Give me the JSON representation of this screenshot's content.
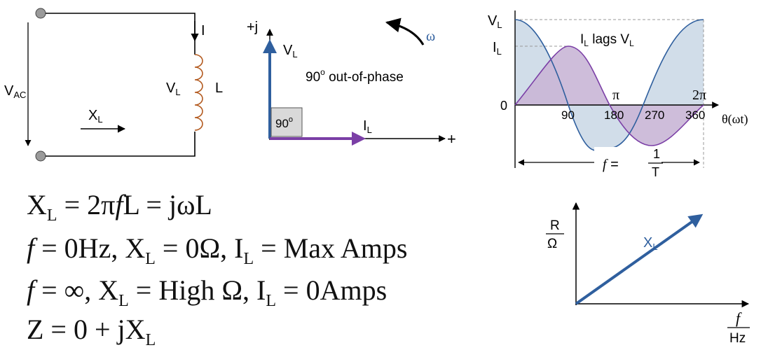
{
  "colors": {
    "blue": "#2f5f9e",
    "purple": "#7b3fa6",
    "peak": "#6b3f9a",
    "shade_blue": "#cfdbe8",
    "shade_purple": "#c9b6d6",
    "inductor": "#b35a1f",
    "omega": "#2f5f9e",
    "ink": "#000000"
  },
  "circuit": {
    "vac": {
      "main": "V",
      "sub": "AC"
    },
    "current": "I",
    "vl": {
      "main": "V",
      "sub": "L"
    },
    "inductor": "L",
    "xl": {
      "main": "X",
      "sub": "L"
    }
  },
  "phasor": {
    "axis_j": "+j",
    "axis_plus": "+",
    "vl": {
      "main": "V",
      "sub": "L"
    },
    "il": {
      "main": "I",
      "sub": "L"
    },
    "angle": {
      "main": "90",
      "sup": "o"
    },
    "phase_note": {
      "main": "90",
      "sup": "o",
      "rest": " out-of-phase"
    },
    "omega": "ω"
  },
  "waveform": {
    "vl_peak": {
      "main": "V",
      "sub": "L"
    },
    "il_peak": {
      "main": "I",
      "sub": "L"
    },
    "zero": "0",
    "lag_note": {
      "i": "I",
      "i_sub": "L",
      "mid": " lags V",
      "v_sub": "L"
    },
    "pi_labels": [
      "π",
      "2π"
    ],
    "degree_ticks": [
      "90",
      "180",
      "270",
      "360"
    ],
    "axis_label": "θ(ωt)",
    "period": {
      "f": "f",
      "eq": " = ",
      "num": "1",
      "den": "T"
    }
  },
  "equations": {
    "line1": {
      "x": "X",
      "x_sub": "L",
      "rest": " = 2π",
      "f": "f",
      "tail": "L = jωL"
    },
    "line2": {
      "f": "f",
      "a": " = 0Hz, X",
      "a_sub": "L",
      "b": " = 0Ω, I",
      "b_sub": "L",
      "c": " = Max Amps"
    },
    "line3": {
      "f": "f",
      "a": " = ∞, X",
      "a_sub": "L",
      "b": " = High Ω, I",
      "b_sub": "L",
      "c": " = 0Amps"
    },
    "line4": {
      "a": "Z = 0 + jX",
      "a_sub": "L"
    }
  },
  "graph": {
    "y_num": "R",
    "y_den": "Ω",
    "line": {
      "main": "X",
      "sub": "L"
    },
    "x_num": "f",
    "x_den": "Hz"
  }
}
